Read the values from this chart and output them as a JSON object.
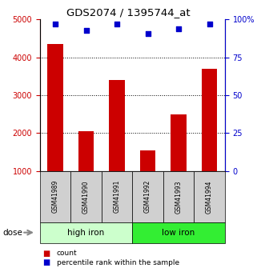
{
  "title": "GDS2074 / 1395744_at",
  "categories": [
    "GSM41989",
    "GSM41990",
    "GSM41991",
    "GSM41992",
    "GSM41993",
    "GSM41994"
  ],
  "bar_values": [
    4350,
    2050,
    3400,
    1550,
    2500,
    3700
  ],
  "dot_values": [
    97,
    92.5,
    97,
    90.5,
    94,
    97
  ],
  "bar_color": "#cc0000",
  "dot_color": "#0000cc",
  "ylim_left": [
    1000,
    5000
  ],
  "ylim_right": [
    0,
    100
  ],
  "yticks_left": [
    1000,
    2000,
    3000,
    4000,
    5000
  ],
  "yticks_right": [
    0,
    25,
    50,
    75,
    100
  ],
  "group1_label": "high iron",
  "group2_label": "low iron",
  "group1_bg": "#ccffcc",
  "group2_bg": "#33ee33",
  "dose_label": "dose",
  "legend_count": "count",
  "legend_pct": "percentile rank within the sample",
  "left_axis_color": "#cc0000",
  "right_axis_color": "#0000cc",
  "gridlines_at": [
    2000,
    3000,
    4000
  ],
  "bar_width": 0.5
}
